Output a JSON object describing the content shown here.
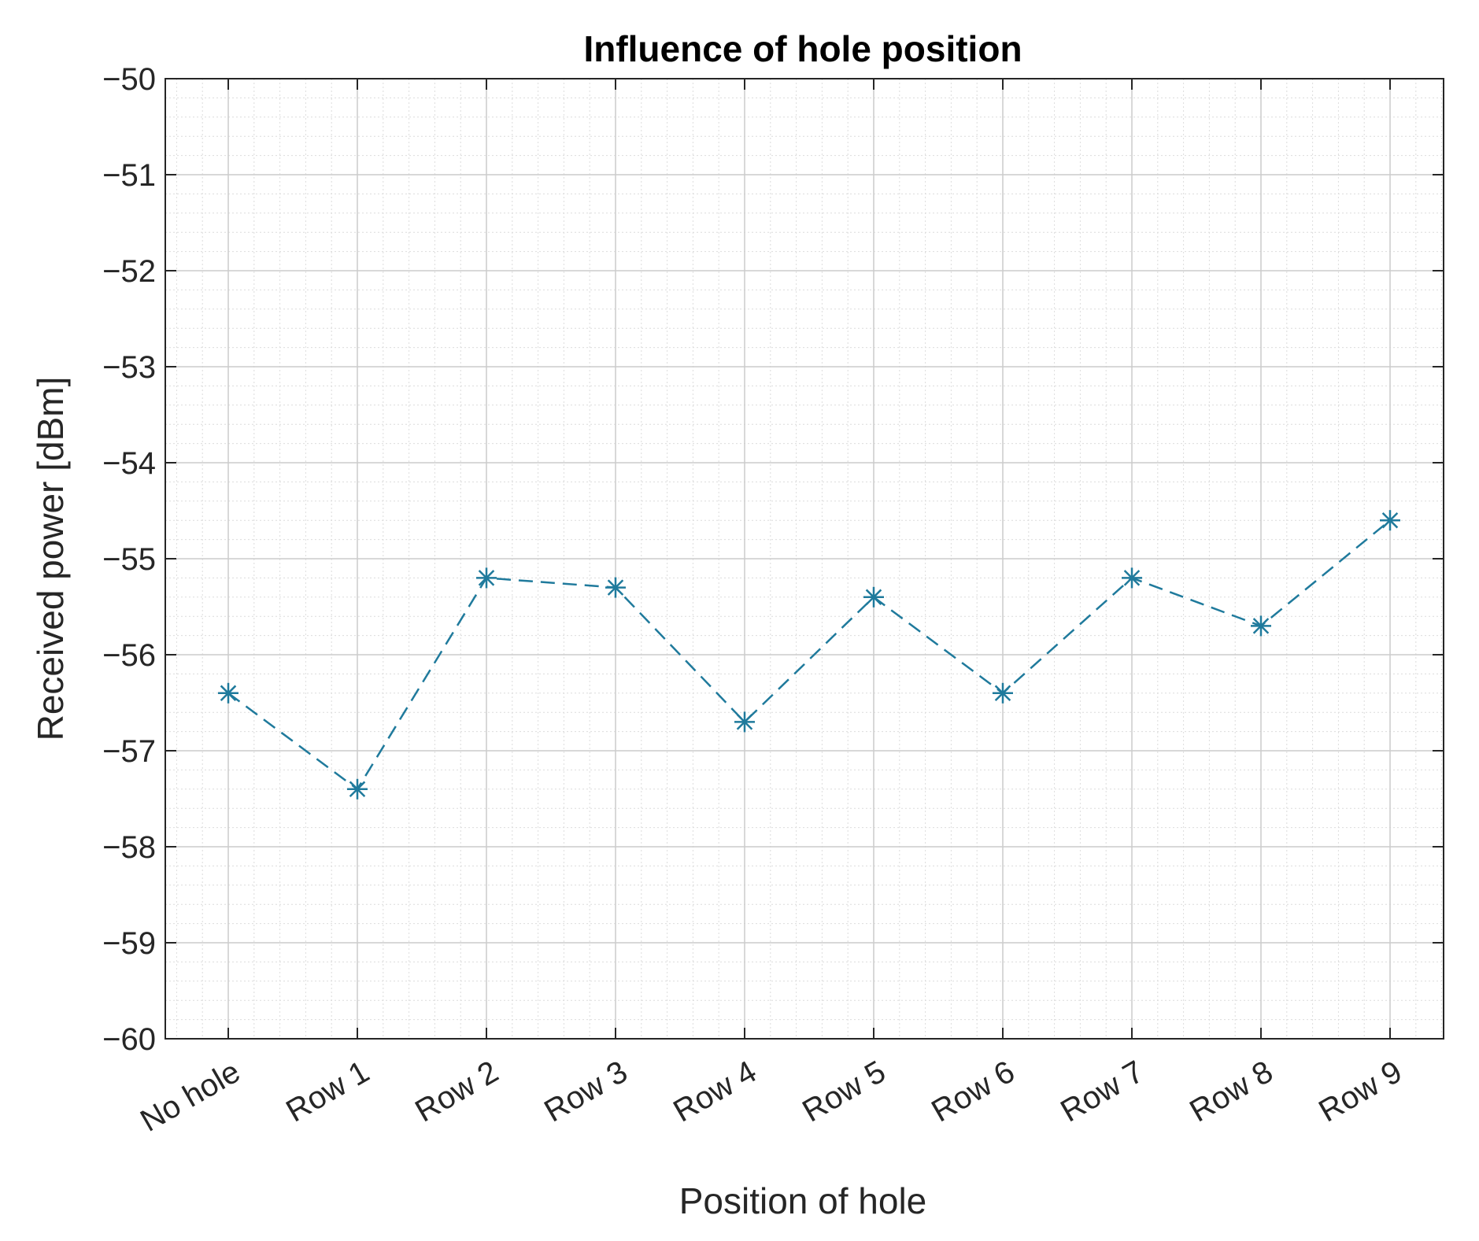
{
  "chart_data": {
    "type": "line",
    "title": "Influence of hole position",
    "xlabel": "Position of hole",
    "ylabel": "Received power [dBm]",
    "categories": [
      "No hole",
      "Row 1",
      "Row 2",
      "Row 3",
      "Row 4",
      "Row 5",
      "Row 6",
      "Row 7",
      "Row 8",
      "Row 9"
    ],
    "series": [
      {
        "values": [
          -56.4,
          -57.4,
          -55.2,
          -55.3,
          -56.7,
          -55.4,
          -56.4,
          -55.2,
          -55.7,
          -54.6
        ],
        "color": "#1f7a9c",
        "line_style": "dashed",
        "marker": "asterisk"
      }
    ],
    "ylim": [
      -60,
      -50
    ],
    "yticks": [
      "-50",
      "-51",
      "-52",
      "-53",
      "-54",
      "-55",
      "-56",
      "-57",
      "-58",
      "-59",
      "-60"
    ],
    "grid": true,
    "minor_grid": true,
    "legend": "none"
  }
}
